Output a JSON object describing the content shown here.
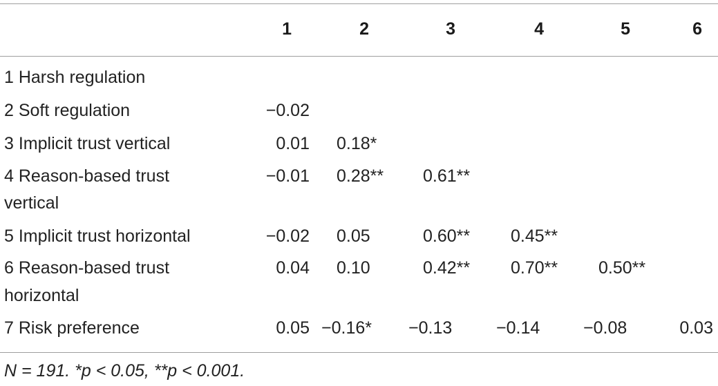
{
  "table": {
    "columns": [
      "1",
      "2",
      "3",
      "4",
      "5",
      "6"
    ],
    "rows": [
      {
        "label": [
          "1 Harsh regulation"
        ],
        "values": [
          "",
          "",
          "",
          "",
          "",
          ""
        ]
      },
      {
        "label": [
          "2 Soft regulation"
        ],
        "values": [
          "−0.02",
          "",
          "",
          "",
          "",
          ""
        ]
      },
      {
        "label": [
          "3 Implicit trust vertical"
        ],
        "values": [
          "0.01",
          "0.18*",
          "",
          "",
          "",
          ""
        ]
      },
      {
        "label": [
          "4 Reason-based trust",
          "vertical"
        ],
        "values": [
          "−0.01",
          "0.28**",
          "0.61**",
          "",
          "",
          ""
        ]
      },
      {
        "label": [
          "5 Implicit trust horizontal"
        ],
        "values": [
          "−0.02",
          "0.05",
          "0.60**",
          "0.45**",
          "",
          ""
        ]
      },
      {
        "label": [
          "6 Reason-based trust",
          "horizontal"
        ],
        "values": [
          "0.04",
          "0.10",
          "0.42**",
          "0.70**",
          "0.50**",
          ""
        ]
      },
      {
        "label": [
          "7 Risk preference"
        ],
        "values": [
          "0.05",
          "−0.16*",
          "−0.13",
          "−0.14",
          "−0.08",
          "0.03"
        ]
      }
    ],
    "note": "N = 191. *p < 0.05, **p < 0.001."
  }
}
